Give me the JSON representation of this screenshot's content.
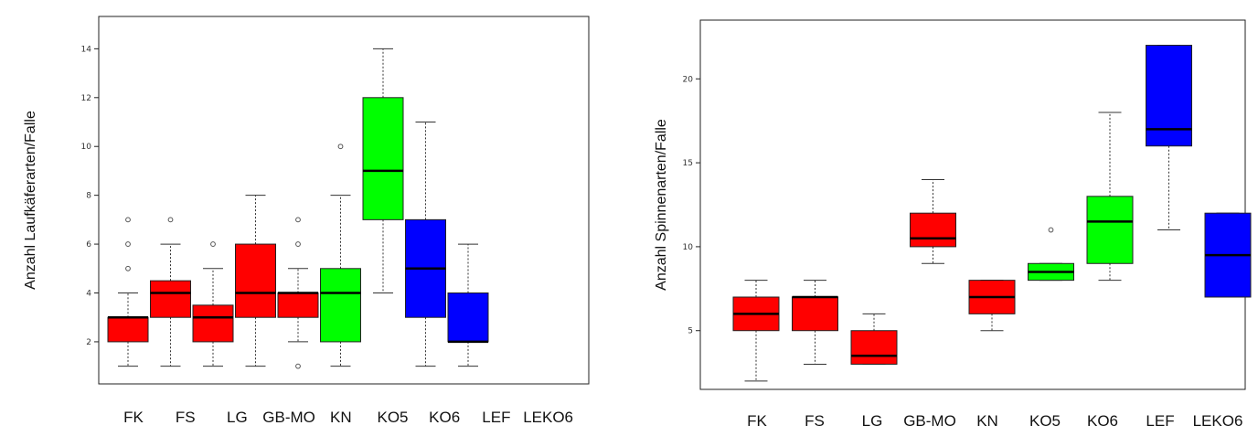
{
  "colors": {
    "red": "#ff0000",
    "green": "#00ff00",
    "blue": "#0000ff"
  },
  "chart_data": [
    {
      "type": "boxplot",
      "ylabel": "Anzahl Laufkäferarten/Falle",
      "ylim": [
        0.5,
        14.8
      ],
      "yticks": [
        2,
        4,
        6,
        8,
        10,
        12,
        14
      ],
      "categories": [
        "FK",
        "FS",
        "LG",
        "GB-MO",
        "KN",
        "KO5",
        "KO6",
        "LEF",
        "LEKO6"
      ],
      "boxes": [
        {
          "category": "FK",
          "color": "#ff0000",
          "min": 1,
          "q1": 2,
          "median": 3,
          "q3": 3,
          "max": 4,
          "outliers": [
            5,
            6,
            7
          ]
        },
        {
          "category": "FS",
          "color": "#ff0000",
          "min": 1,
          "q1": 3,
          "median": 4,
          "q3": 4.5,
          "max": 6,
          "outliers": [
            7
          ]
        },
        {
          "category": "LG",
          "color": "#ff0000",
          "min": 1,
          "q1": 2,
          "median": 3,
          "q3": 3.5,
          "max": 5,
          "outliers": [
            6
          ]
        },
        {
          "category": "GB-MO",
          "color": "#ff0000",
          "min": 1,
          "q1": 3,
          "median": 4,
          "q3": 6,
          "max": 8,
          "outliers": []
        },
        {
          "category": "KN",
          "color": "#ff0000",
          "min": 2,
          "q1": 3,
          "median": 4,
          "q3": 4,
          "max": 5,
          "outliers": [
            1,
            6,
            7
          ]
        },
        {
          "category": "KO5",
          "color": "#00ff00",
          "min": 1,
          "q1": 2,
          "median": 4,
          "q3": 5,
          "max": 8,
          "outliers": [
            10
          ]
        },
        {
          "category": "KO6",
          "color": "#00ff00",
          "min": 4,
          "q1": 7,
          "median": 9,
          "q3": 12,
          "max": 14,
          "outliers": []
        },
        {
          "category": "LEF",
          "color": "#0000ff",
          "min": 1,
          "q1": 3,
          "median": 5,
          "q3": 7,
          "max": 11,
          "outliers": []
        },
        {
          "category": "LEKO6",
          "color": "#0000ff",
          "min": 1,
          "q1": 2,
          "median": 2,
          "q3": 4,
          "max": 6,
          "outliers": []
        }
      ]
    },
    {
      "type": "boxplot",
      "ylabel": "Anzahl Spinnenarten/Falle",
      "ylim": [
        1.5,
        23.5
      ],
      "yticks": [
        5,
        10,
        15,
        20
      ],
      "categories": [
        "FK",
        "FS",
        "LG",
        "GB-MO",
        "KN",
        "KO5",
        "KO6",
        "LEF",
        "LEKO6"
      ],
      "boxes": [
        {
          "category": "FK",
          "color": "#ff0000",
          "min": 2,
          "q1": 5,
          "median": 6,
          "q3": 7,
          "max": 8,
          "outliers": []
        },
        {
          "category": "FS",
          "color": "#ff0000",
          "min": 3,
          "q1": 5,
          "median": 7,
          "q3": 7,
          "max": 8,
          "outliers": []
        },
        {
          "category": "LG",
          "color": "#ff0000",
          "min": 3,
          "q1": 3,
          "median": 3.5,
          "q3": 5,
          "max": 6,
          "outliers": []
        },
        {
          "category": "GB-MO",
          "color": "#ff0000",
          "min": 9,
          "q1": 10,
          "median": 10.5,
          "q3": 12,
          "max": 14,
          "outliers": []
        },
        {
          "category": "KN",
          "color": "#ff0000",
          "min": 5,
          "q1": 6,
          "median": 7,
          "q3": 8,
          "max": 8,
          "outliers": []
        },
        {
          "category": "KO5",
          "color": "#00ff00",
          "min": 8,
          "q1": 8,
          "median": 8.5,
          "q3": 9,
          "max": 9,
          "outliers": [
            11
          ]
        },
        {
          "category": "KO6",
          "color": "#00ff00",
          "min": 8,
          "q1": 9,
          "median": 11.5,
          "q3": 13,
          "max": 18,
          "outliers": []
        },
        {
          "category": "LEF",
          "color": "#0000ff",
          "min": 11,
          "q1": 16,
          "median": 17,
          "q3": 22,
          "max": 22,
          "outliers": []
        },
        {
          "category": "LEKO6",
          "color": "#0000ff",
          "min": 7,
          "q1": 7,
          "median": 9.5,
          "q3": 12,
          "max": 12,
          "outliers": []
        }
      ]
    }
  ]
}
